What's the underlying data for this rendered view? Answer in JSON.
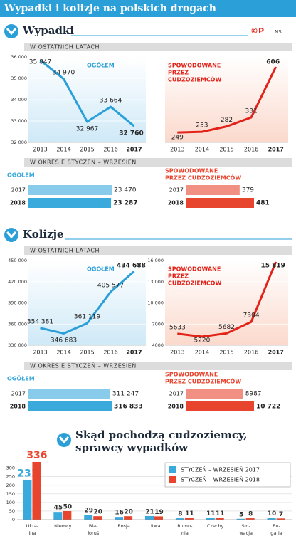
{
  "header": {
    "title": "Wypadki i kolizje na polskich drogach",
    "logo": "©P",
    "credit": "NS"
  },
  "sections": [
    {
      "heading": "Wypadki",
      "period1": "W OSTATNICH LATACH",
      "period2": "W OKRESIE STYCZEŃ – WRZESIEŃ"
    },
    {
      "heading": "Kolizje",
      "period1": "W OSTATNICH LATACH",
      "period2": "W OKRESIE STYCZEŃ – WRZESIEŃ"
    },
    {
      "heading": [
        "Skąd pochodzą cudzoziemcy,",
        "sprawcy wypadków"
      ]
    }
  ],
  "chart_data": [
    {
      "type": "line",
      "title": [
        "OGÓŁEM"
      ],
      "categories": [
        "2013",
        "2014",
        "2015",
        "2016",
        "2017"
      ],
      "values": [
        35847,
        34970,
        32967,
        33664,
        32760
      ],
      "value_labels": [
        "35 847",
        "34 970",
        "32 967",
        "33 664",
        "32 760"
      ],
      "color": "#2a9fd8",
      "ylim": [
        32000,
        36000
      ],
      "yticks": [
        {
          "value": 32000,
          "label": "32 000"
        },
        {
          "value": 33000,
          "label": "33 000"
        },
        {
          "value": 34000,
          "label": "34 000"
        },
        {
          "value": 35000,
          "label": "35 000"
        },
        {
          "value": 36000,
          "label": "36 000"
        }
      ]
    },
    {
      "type": "line",
      "title": [
        "SPOWODOWANE",
        "PRZEZ",
        "CUDZOZIEMCÓW"
      ],
      "categories": [
        "2013",
        "2014",
        "2015",
        "2016",
        "2017"
      ],
      "values": [
        249,
        253,
        282,
        331,
        606
      ],
      "color": "#e2231a"
    },
    {
      "type": "hbar",
      "title": [
        "OGÓŁEM"
      ],
      "categories": [
        "2017",
        "2018"
      ],
      "values": [
        23470,
        23287
      ],
      "value_labels": [
        "23 470",
        "23 287"
      ],
      "color": "#3aa9dc"
    },
    {
      "type": "hbar",
      "title": [
        "SPOWODOWANE",
        "PRZEZ CUDZOZIEMCÓW"
      ],
      "categories": [
        "2017",
        "2018"
      ],
      "values": [
        379,
        481
      ],
      "color": "#e8452e"
    },
    {
      "type": "line",
      "title": [
        "OGÓŁEM"
      ],
      "categories": [
        "2013",
        "2014",
        "2015",
        "2016",
        "2017"
      ],
      "values": [
        354381,
        346683,
        361119,
        405577,
        434688
      ],
      "value_labels": [
        "354 381",
        "346 683",
        "361 119",
        "405 577",
        "434 688"
      ],
      "color": "#2a9fd8",
      "ylim": [
        330000,
        450000
      ],
      "yticks": [
        {
          "value": 330000,
          "label": "330 000"
        },
        {
          "value": 360000,
          "label": "360 000"
        },
        {
          "value": 390000,
          "label": "390 000"
        },
        {
          "value": 420000,
          "label": "420 000"
        },
        {
          "value": 450000,
          "label": "450 000"
        }
      ]
    },
    {
      "type": "line",
      "title": [
        "SPOWODOWANE",
        "PRZEZ",
        "CUDZOZIEMCÓW"
      ],
      "categories": [
        "2013",
        "2014",
        "2015",
        "2016",
        "2017"
      ],
      "values": [
        5633,
        5220,
        5682,
        7304,
        15819
      ],
      "value_labels": [
        "5633",
        "5220",
        "5682",
        "7304",
        "15 819"
      ],
      "color": "#e2231a",
      "ylim": [
        4000,
        16000
      ],
      "yticks": [
        4000,
        7000,
        {
          "value": 10000,
          "label": "10 000"
        },
        {
          "value": 13000,
          "label": "13 000"
        },
        {
          "value": 16000,
          "label": "16 000"
        }
      ]
    },
    {
      "type": "hbar",
      "title": [
        "OGÓŁEM"
      ],
      "categories": [
        "2017",
        "2018"
      ],
      "values": [
        311247,
        316833
      ],
      "value_labels": [
        "311 247",
        "316 833"
      ],
      "color": "#3aa9dc"
    },
    {
      "type": "hbar",
      "title": [
        "SPOWODOWANE",
        "PRZEZ CUDZOZIEMCÓW"
      ],
      "categories": [
        "2017",
        "2018"
      ],
      "values": [
        8987,
        10722
      ],
      "value_labels": [
        "8987",
        "10 722"
      ],
      "color": "#e8452e"
    },
    {
      "type": "grouped-bar",
      "categories": [
        [
          "Ukra-",
          "ina"
        ],
        [
          "Niemcy"
        ],
        [
          "Bia-",
          "łoruś"
        ],
        [
          "Rosja"
        ],
        [
          "Litwa"
        ],
        [
          "Rumu-",
          "nia"
        ],
        [
          "Czechy"
        ],
        [
          "Sło-",
          "wacja"
        ],
        [
          "Bu-",
          "garia"
        ]
      ],
      "series": [
        {
          "name": "STYCZEŃ – WRZESIEŃ 2017",
          "color": "#3aa9dc",
          "values": [
            231,
            45,
            29,
            16,
            21,
            8,
            11,
            5,
            10
          ]
        },
        {
          "name": "STYCZEŃ – WRZESIEŃ 2018",
          "color": "#e8452e",
          "values": [
            336,
            50,
            20,
            20,
            19,
            11,
            11,
            8,
            7
          ]
        }
      ],
      "ylim": [
        0,
        340
      ],
      "yticks": [
        0,
        50,
        100,
        150,
        200,
        250,
        300
      ],
      "legend": "top-right"
    }
  ]
}
